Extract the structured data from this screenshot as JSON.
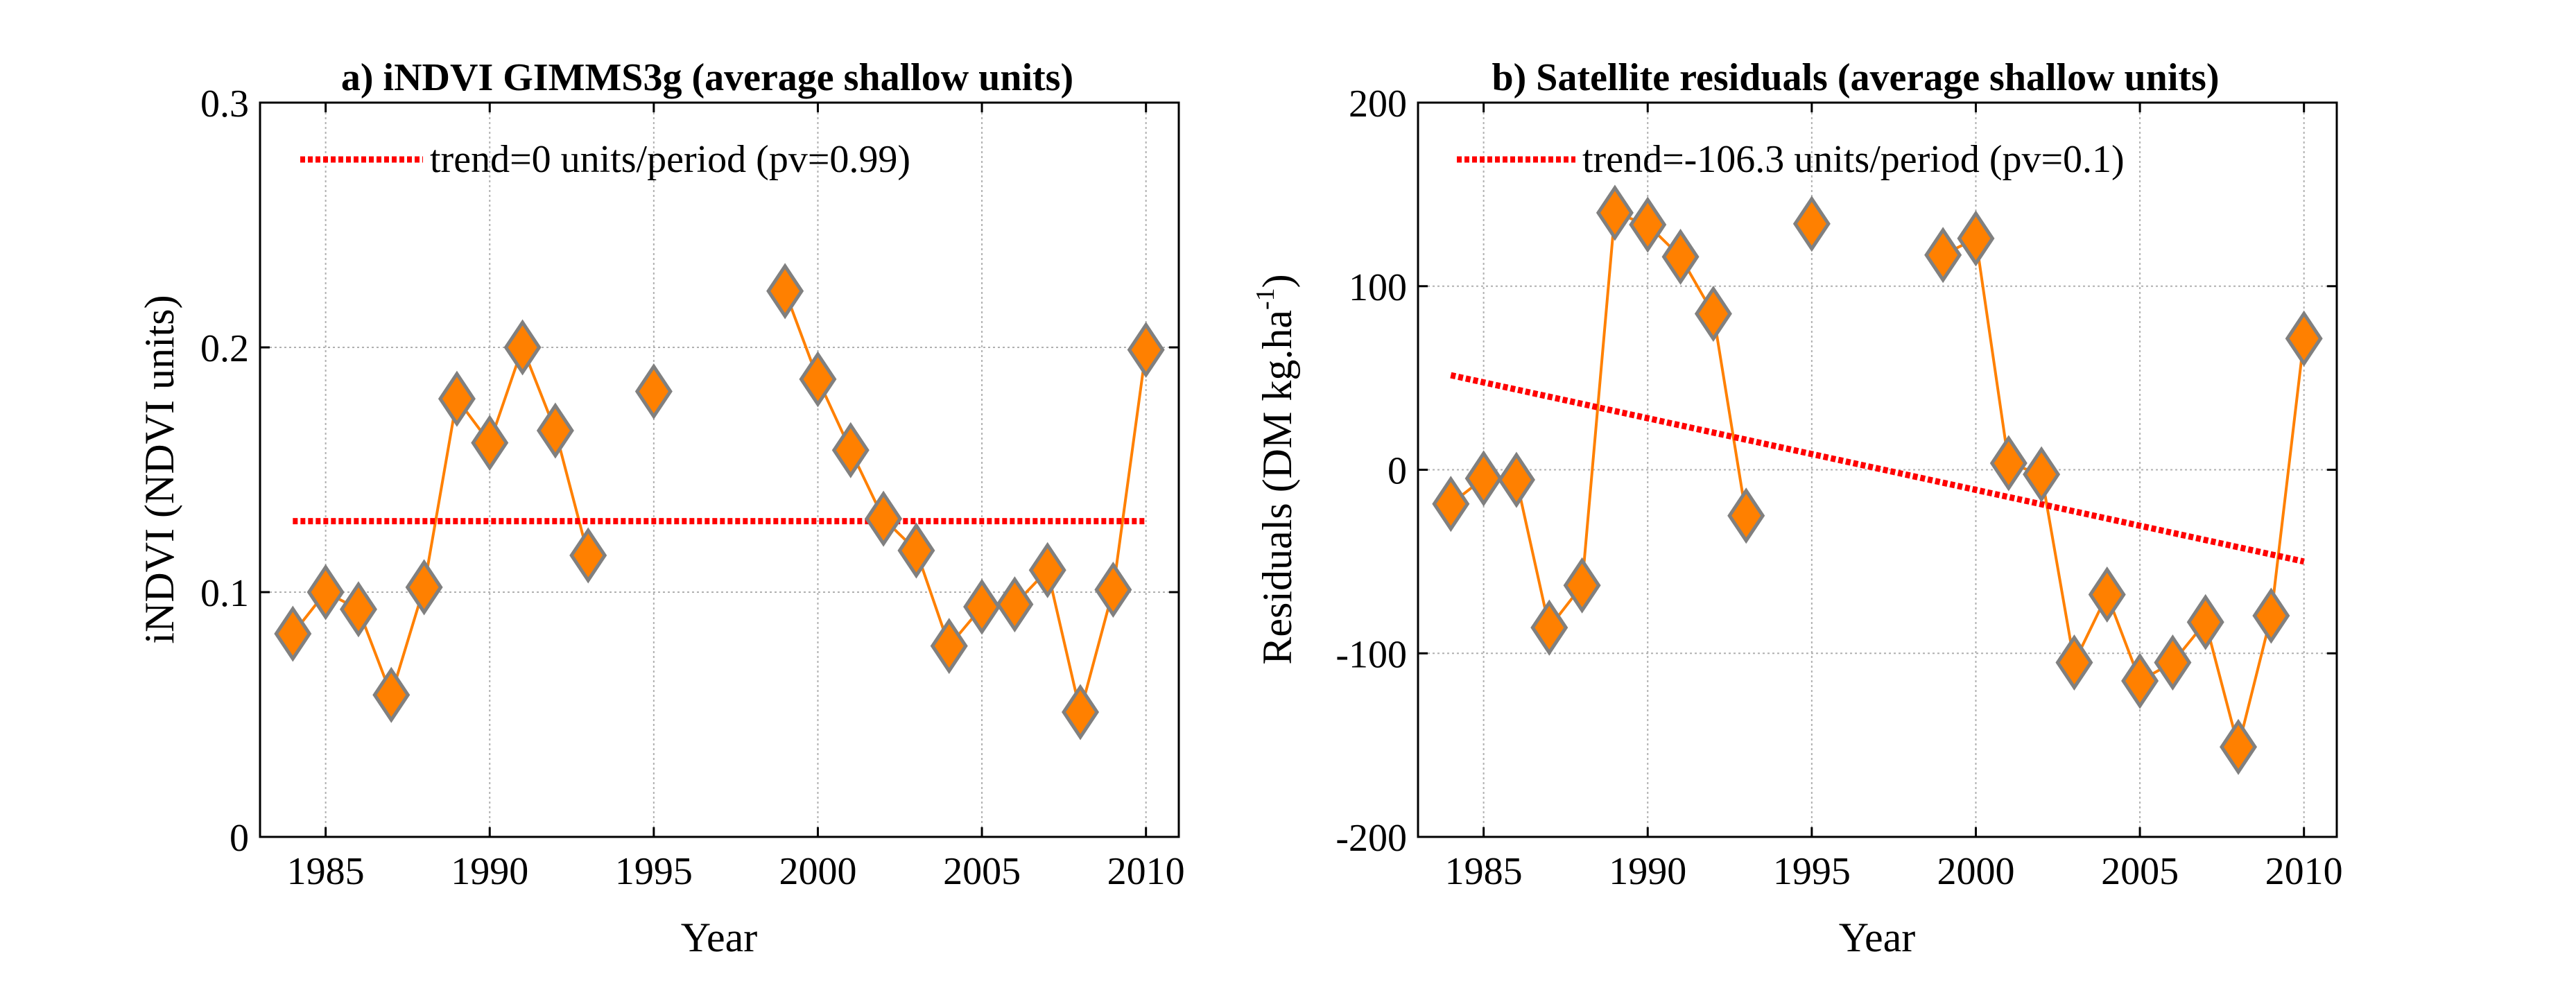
{
  "colors": {
    "series": "#ff8000",
    "marker_edge": "#808080",
    "trend": "#ff0000",
    "grid": "#b0b0b0"
  },
  "chart_data": [
    {
      "type": "line",
      "title": "a) iNDVI GIMMS3g (average shallow units)",
      "xlabel": "Year",
      "ylabel": "iNDVI (NDVI units)",
      "xlim": [
        1983,
        2011
      ],
      "ylim": [
        0,
        0.3
      ],
      "xticks": [
        1985,
        1990,
        1995,
        2000,
        2005,
        2010
      ],
      "yticks": [
        0,
        0.1,
        0.2,
        0.3
      ],
      "ytick_labels": [
        "0",
        "0.1",
        "0.2",
        "0.3"
      ],
      "grid": true,
      "legend_position": "top-left",
      "x": [
        1984,
        1985,
        1986,
        1987,
        1988,
        1989,
        1990,
        1991,
        1992,
        1993,
        1994,
        1995,
        1996,
        1997,
        1998,
        1999,
        2000,
        2001,
        2002,
        2003,
        2004,
        2005,
        2006,
        2007,
        2008,
        2009,
        2010
      ],
      "series": [
        {
          "name": "iNDVI",
          "values": [
            0.083,
            0.1,
            0.093,
            0.058,
            0.102,
            0.179,
            0.161,
            0.2,
            0.166,
            0.115,
            null,
            0.182,
            null,
            null,
            null,
            0.223,
            0.187,
            0.158,
            0.13,
            0.117,
            0.078,
            0.094,
            0.095,
            0.109,
            0.051,
            0.101,
            0.199
          ]
        }
      ],
      "trend": {
        "label": "trend=0 units/period (pv=0.99)",
        "x": [
          1984,
          2010
        ],
        "y": [
          0.129,
          0.129
        ]
      }
    },
    {
      "type": "line",
      "title": "b) Satellite residuals (average shallow units)",
      "xlabel": "Year",
      "ylabel": "Residuals (DM kg.ha",
      "ylabel_sup": "-1",
      "ylabel_end": ")",
      "xlim": [
        1983,
        2011
      ],
      "ylim": [
        -200,
        200
      ],
      "xticks": [
        1985,
        1990,
        1995,
        2000,
        2005,
        2010
      ],
      "yticks": [
        -200,
        -100,
        0,
        100,
        200
      ],
      "ytick_labels": [
        "-200",
        "-100",
        "0",
        "100",
        "200"
      ],
      "grid": true,
      "legend_position": "top-left",
      "x": [
        1984,
        1985,
        1986,
        1987,
        1988,
        1989,
        1990,
        1991,
        1992,
        1993,
        1994,
        1995,
        1996,
        1997,
        1998,
        1999,
        2000,
        2001,
        2002,
        2003,
        2004,
        2005,
        2006,
        2007,
        2008,
        2009,
        2010
      ],
      "series": [
        {
          "name": "Residuals",
          "values": [
            -18.6,
            -4.7,
            -5.5,
            -86,
            -63,
            140,
            133.5,
            116,
            85,
            -25,
            null,
            134,
            null,
            null,
            null,
            117,
            126,
            3.6,
            -2.5,
            -105,
            -68,
            -115,
            -105,
            -83,
            -151,
            -79.5,
            71.5
          ]
        }
      ],
      "trend": {
        "label": "trend=-106.3 units/period (pv=0.1)",
        "x": [
          1984,
          2010
        ],
        "y": [
          51.5,
          -50
        ]
      }
    }
  ]
}
